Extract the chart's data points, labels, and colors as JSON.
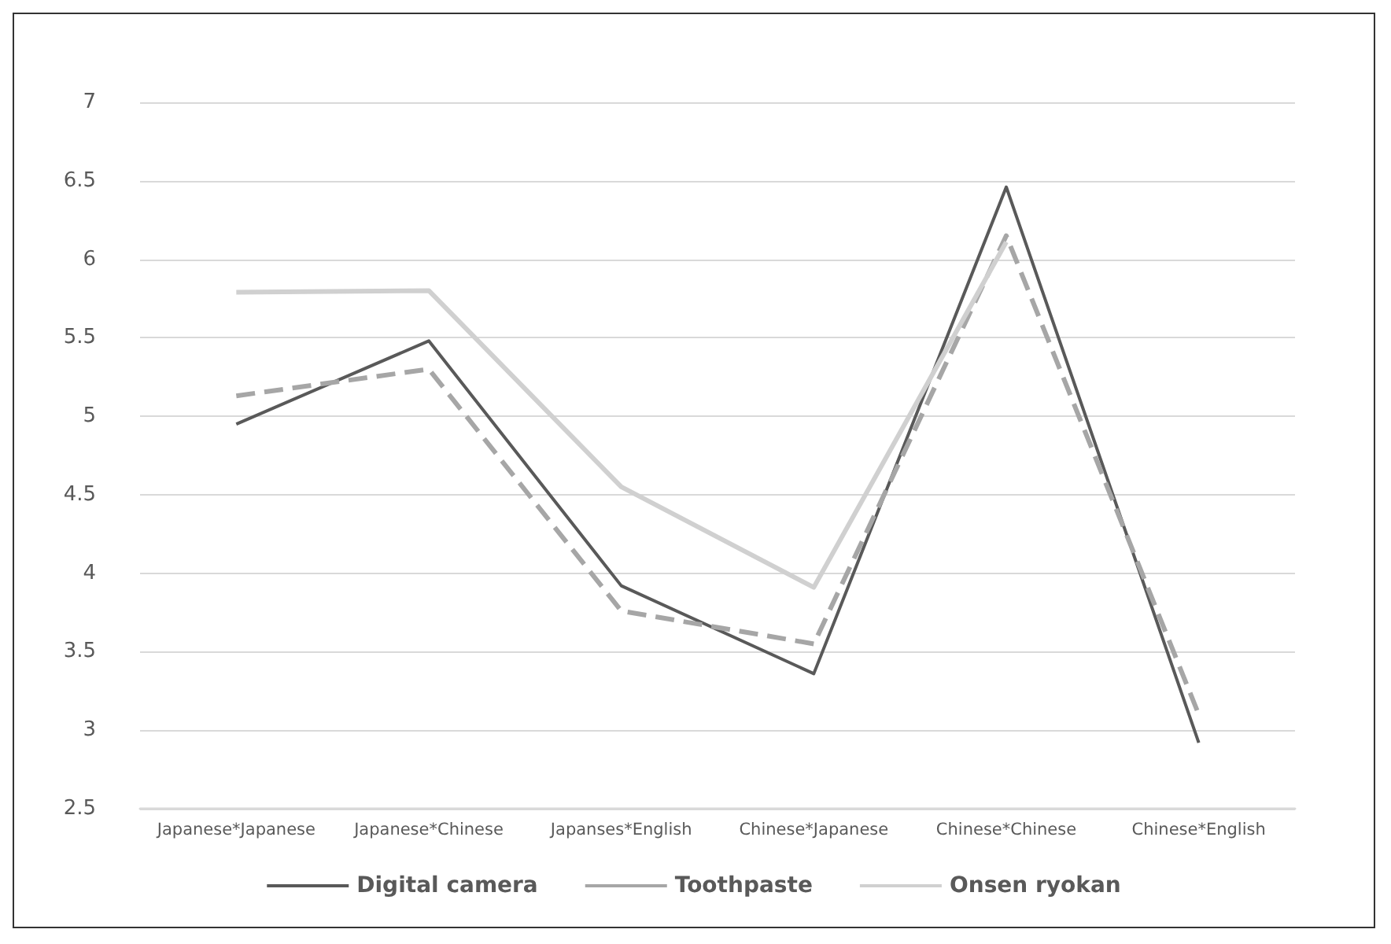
{
  "chart_data": {
    "type": "line",
    "categories": [
      "Japanese*Japanese",
      "Japanese*Chinese",
      "Japanses*English",
      "Chinese*Japanese",
      "Chinese*Chinese",
      "Chinese*English"
    ],
    "series": [
      {
        "name": "Digital camera",
        "color": "#595959",
        "line_style": "solid",
        "values": [
          4.95,
          5.48,
          3.92,
          3.36,
          6.46,
          2.92
        ]
      },
      {
        "name": "Toothpaste",
        "color": "#a6a6a6",
        "line_style": "dashed",
        "values": [
          5.13,
          5.3,
          3.76,
          3.55,
          6.15,
          3.1
        ]
      },
      {
        "name": "Onsen ryokan",
        "color": "#d0d0d0",
        "line_style": "solid",
        "values": [
          5.79,
          5.8,
          4.55,
          3.91,
          6.11,
          null
        ]
      }
    ],
    "ylim": [
      2.5,
      7
    ],
    "yticks": [
      2.5,
      3,
      3.5,
      4,
      4.5,
      5,
      5.5,
      6,
      6.5,
      7
    ],
    "grid": "y",
    "legend": "bottom",
    "marker": "none"
  }
}
